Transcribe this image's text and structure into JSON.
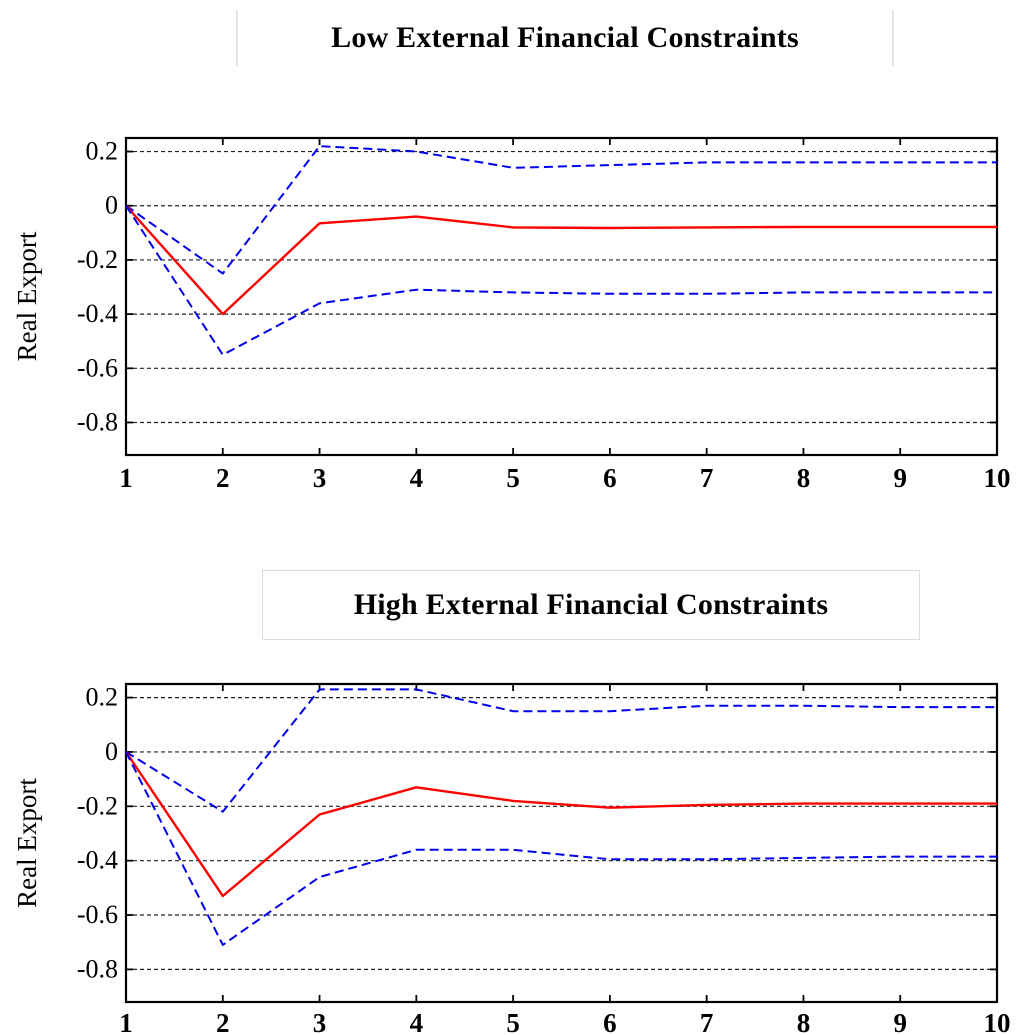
{
  "chart_data": [
    {
      "type": "line",
      "title": "Low External Financial Constraints",
      "ylabel": "Real Export",
      "xlabel": "",
      "x": [
        1,
        2,
        3,
        4,
        5,
        6,
        7,
        8,
        9,
        10
      ],
      "xlim": [
        1,
        10
      ],
      "ylim": [
        -0.92,
        0.25
      ],
      "xticks": [
        "1",
        "2",
        "3",
        "4",
        "5",
        "6",
        "7",
        "8",
        "9",
        "10"
      ],
      "yticks": [
        {
          "value": 0.2,
          "label": "0.2"
        },
        {
          "value": 0,
          "label": "0"
        },
        {
          "value": -0.2,
          "label": "-0.2"
        },
        {
          "value": -0.4,
          "label": "-0.4"
        },
        {
          "value": -0.6,
          "label": "-0.6"
        },
        {
          "value": -0.8,
          "label": "-0.8"
        }
      ],
      "grid": "horizontal dashed",
      "series": [
        {
          "role": "upper-band",
          "values": [
            0.0,
            -0.25,
            0.22,
            0.2,
            0.14,
            0.15,
            0.16,
            0.16,
            0.16,
            0.16
          ],
          "color": "#0000ee",
          "style": "dashed"
        },
        {
          "role": "estimate",
          "values": [
            0.0,
            -0.4,
            -0.065,
            -0.04,
            -0.08,
            -0.082,
            -0.08,
            -0.078,
            -0.078,
            -0.078
          ],
          "color": "#ff0000",
          "style": "solid"
        },
        {
          "role": "lower-band",
          "values": [
            0.0,
            -0.55,
            -0.36,
            -0.31,
            -0.32,
            -0.325,
            -0.325,
            -0.32,
            -0.32,
            -0.32
          ],
          "color": "#0000ee",
          "style": "dashed"
        }
      ]
    },
    {
      "type": "line",
      "title": "High External Financial Constraints",
      "ylabel": "Real Export",
      "xlabel": "",
      "x": [
        1,
        2,
        3,
        4,
        5,
        6,
        7,
        8,
        9,
        10
      ],
      "xlim": [
        1,
        10
      ],
      "ylim": [
        -0.92,
        0.25
      ],
      "xticks": [
        "1",
        "2",
        "3",
        "4",
        "5",
        "6",
        "7",
        "8",
        "9",
        "10"
      ],
      "yticks": [
        {
          "value": 0.2,
          "label": "0.2"
        },
        {
          "value": 0,
          "label": "0"
        },
        {
          "value": -0.2,
          "label": "-0.2"
        },
        {
          "value": -0.4,
          "label": "-0.4"
        },
        {
          "value": -0.6,
          "label": "-0.6"
        },
        {
          "value": -0.8,
          "label": "-0.8"
        }
      ],
      "grid": "horizontal dashed",
      "series": [
        {
          "role": "upper-band",
          "values": [
            0.0,
            -0.22,
            0.23,
            0.23,
            0.15,
            0.15,
            0.17,
            0.17,
            0.165,
            0.165
          ],
          "color": "#0000ee",
          "style": "dashed"
        },
        {
          "role": "estimate",
          "values": [
            0.0,
            -0.53,
            -0.23,
            -0.13,
            -0.18,
            -0.205,
            -0.195,
            -0.19,
            -0.19,
            -0.19
          ],
          "color": "#ff0000",
          "style": "solid"
        },
        {
          "role": "lower-band",
          "values": [
            0.0,
            -0.71,
            -0.46,
            -0.36,
            -0.36,
            -0.395,
            -0.395,
            -0.39,
            -0.385,
            -0.385
          ],
          "color": "#0000ee",
          "style": "dashed"
        }
      ]
    }
  ]
}
